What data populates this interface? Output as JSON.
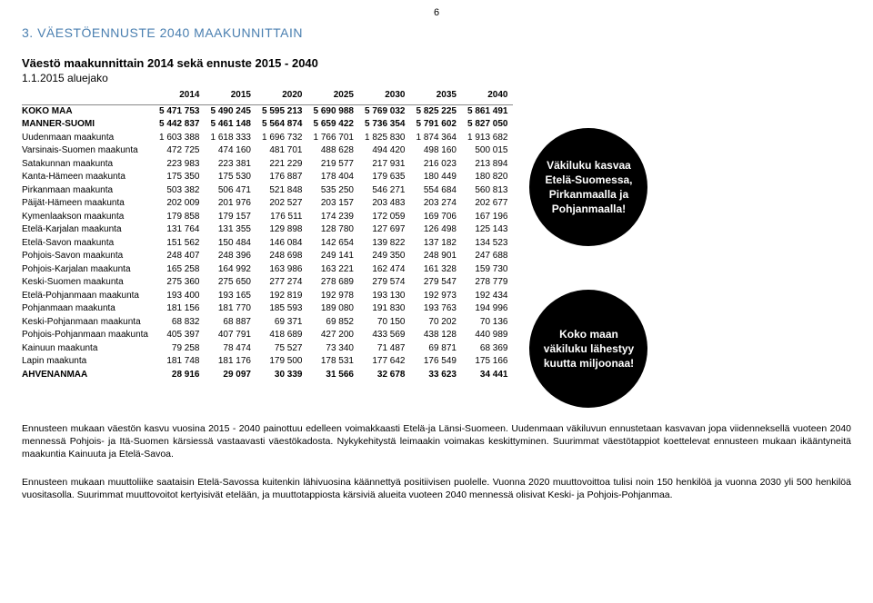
{
  "page_number": "6",
  "section_title": "3. VÄESTÖENNUSTE 2040 MAAKUNNITTAIN",
  "table_title": "Väestö maakunnittain 2014 sekä ennuste 2015 - 2040",
  "table_subtitle": "1.1.2015 aluejako",
  "columns": [
    "",
    "2014",
    "2015",
    "2020",
    "2025",
    "2030",
    "2035",
    "2040"
  ],
  "rows": [
    {
      "bold": true,
      "cells": [
        "KOKO MAA",
        "5 471 753",
        "5 490 245",
        "5 595 213",
        "5 690 988",
        "5 769 032",
        "5 825 225",
        "5 861 491"
      ]
    },
    {
      "bold": true,
      "cells": [
        "MANNER-SUOMI",
        "5 442 837",
        "5 461 148",
        "5 564 874",
        "5 659 422",
        "5 736 354",
        "5 791 602",
        "5 827 050"
      ]
    },
    {
      "bold": false,
      "cells": [
        "Uudenmaan maakunta",
        "1 603 388",
        "1 618 333",
        "1 696 732",
        "1 766 701",
        "1 825 830",
        "1 874 364",
        "1 913 682"
      ]
    },
    {
      "bold": false,
      "cells": [
        "Varsinais-Suomen maakunta",
        "472 725",
        "474 160",
        "481 701",
        "488 628",
        "494 420",
        "498 160",
        "500 015"
      ]
    },
    {
      "bold": false,
      "cells": [
        "Satakunnan maakunta",
        "223 983",
        "223 381",
        "221 229",
        "219 577",
        "217 931",
        "216 023",
        "213 894"
      ]
    },
    {
      "bold": false,
      "cells": [
        "Kanta-Hämeen maakunta",
        "175 350",
        "175 530",
        "176 887",
        "178 404",
        "179 635",
        "180 449",
        "180 820"
      ]
    },
    {
      "bold": false,
      "cells": [
        "Pirkanmaan maakunta",
        "503 382",
        "506 471",
        "521 848",
        "535 250",
        "546 271",
        "554 684",
        "560 813"
      ]
    },
    {
      "bold": false,
      "cells": [
        "Päijät-Hämeen maakunta",
        "202 009",
        "201 976",
        "202 527",
        "203 157",
        "203 483",
        "203 274",
        "202 677"
      ]
    },
    {
      "bold": false,
      "cells": [
        "Kymenlaakson maakunta",
        "179 858",
        "179 157",
        "176 511",
        "174 239",
        "172 059",
        "169 706",
        "167 196"
      ]
    },
    {
      "bold": false,
      "cells": [
        "Etelä-Karjalan maakunta",
        "131 764",
        "131 355",
        "129 898",
        "128 780",
        "127 697",
        "126 498",
        "125 143"
      ]
    },
    {
      "bold": false,
      "cells": [
        "Etelä-Savon maakunta",
        "151 562",
        "150 484",
        "146 084",
        "142 654",
        "139 822",
        "137 182",
        "134 523"
      ]
    },
    {
      "bold": false,
      "cells": [
        "Pohjois-Savon maakunta",
        "248 407",
        "248 396",
        "248 698",
        "249 141",
        "249 350",
        "248 901",
        "247 688"
      ]
    },
    {
      "bold": false,
      "cells": [
        "Pohjois-Karjalan maakunta",
        "165 258",
        "164 992",
        "163 986",
        "163 221",
        "162 474",
        "161 328",
        "159 730"
      ]
    },
    {
      "bold": false,
      "cells": [
        "Keski-Suomen maakunta",
        "275 360",
        "275 650",
        "277 274",
        "278 689",
        "279 574",
        "279 547",
        "278 779"
      ]
    },
    {
      "bold": false,
      "cells": [
        "Etelä-Pohjanmaan maakunta",
        "193 400",
        "193 165",
        "192 819",
        "192 978",
        "193 130",
        "192 973",
        "192 434"
      ]
    },
    {
      "bold": false,
      "cells": [
        "Pohjanmaan maakunta",
        "181 156",
        "181 770",
        "185 593",
        "189 080",
        "191 830",
        "193 763",
        "194 996"
      ]
    },
    {
      "bold": false,
      "cells": [
        "Keski-Pohjanmaan maakunta",
        "68 832",
        "68 887",
        "69 371",
        "69 852",
        "70 150",
        "70 202",
        "70 136"
      ]
    },
    {
      "bold": false,
      "cells": [
        "Pohjois-Pohjanmaan maakunta",
        "405 397",
        "407 791",
        "418 689",
        "427 200",
        "433 569",
        "438 128",
        "440 989"
      ]
    },
    {
      "bold": false,
      "cells": [
        "Kainuun maakunta",
        "79 258",
        "78 474",
        "75 527",
        "73 340",
        "71 487",
        "69 871",
        "68 369"
      ]
    },
    {
      "bold": false,
      "cells": [
        "Lapin maakunta",
        "181 748",
        "181 176",
        "179 500",
        "178 531",
        "177 642",
        "176 549",
        "175 166"
      ]
    },
    {
      "bold": true,
      "cells": [
        "AHVENANMAA",
        "28 916",
        "29 097",
        "30 339",
        "31 566",
        "32 678",
        "33 623",
        "34 441"
      ]
    }
  ],
  "bubble1": "Väkiluku kasvaa Etelä-Suomessa, Pirkanmaalla ja Pohjanmaalla!",
  "bubble2": "Koko maan väkiluku lähestyy kuutta miljoonaa!",
  "paragraph1": "Ennusteen mukaan väestön kasvu vuosina 2015 - 2040 painottuu edelleen voimakkaasti Etelä-ja Länsi-Suomeen. Uudenmaan väkiluvun ennustetaan kasvavan jopa viidenneksellä vuoteen 2040 mennessä Pohjois- ja Itä-Suomen kärsiessä vastaavasti väestökadosta. Nykykehitystä leimaakin voimakas keskittyminen. Suurimmat väestötappiot koettelevat ennusteen mukaan ikääntyneitä maakuntia Kainuuta ja Etelä-Savoa.",
  "paragraph2": "Ennusteen mukaan muuttoliike saataisin Etelä-Savossa kuitenkin lähivuosina käännettyä positiivisen puolelle. Vuonna 2020 muuttovoittoa tulisi noin 150 henkilöä ja vuonna 2030 yli 500 henkilöä vuositasolla. Suurimmat muuttovoitot kertyisivät etelään, ja muuttotappiosta kärsiviä alueita vuoteen 2040 mennessä olisivat Keski- ja Pohjois-Pohjanmaa."
}
